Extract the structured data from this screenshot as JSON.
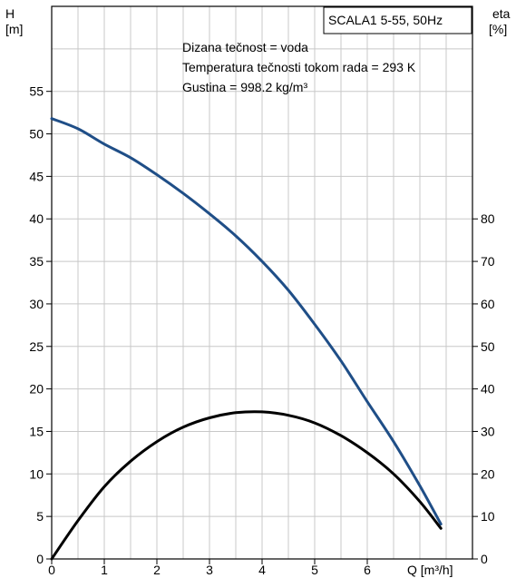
{
  "chart_data": {
    "type": "line",
    "title": "SCALA1 5-55, 50Hz",
    "annotations": [
      "Dizana tečnost = voda",
      "Temperatura tečnosti tokom rada = 293 K",
      "Gustina = 998.2 kg/m³"
    ],
    "xlabel": "Q [m³/h]",
    "ylabel_left": [
      "H",
      "[m]"
    ],
    "ylabel_right": [
      "eta",
      "[%]"
    ],
    "x_ticks": [
      0,
      1,
      2,
      3,
      4,
      5,
      6
    ],
    "y_left_ticks": [
      0,
      5,
      10,
      15,
      20,
      25,
      30,
      35,
      40,
      45,
      50,
      55
    ],
    "y_right_ticks": [
      0,
      10,
      20,
      30,
      40,
      50,
      60,
      70,
      80
    ],
    "xlim": [
      0,
      8
    ],
    "ylim_left": [
      0,
      65
    ],
    "ylim_right": [
      0,
      130
    ],
    "grid": true,
    "series": [
      {
        "axis": "left",
        "color": "#1f4e87",
        "x": [
          0,
          0.5,
          1,
          1.5,
          2,
          2.5,
          3,
          3.5,
          4,
          4.5,
          5,
          5.5,
          6,
          6.5,
          7,
          7.4
        ],
        "values": [
          51.8,
          50.6,
          48.8,
          47.2,
          45.2,
          43.0,
          40.6,
          38.0,
          35.0,
          31.6,
          27.6,
          23.3,
          18.5,
          13.8,
          8.6,
          4.1
        ]
      },
      {
        "axis": "right",
        "color": "#000000",
        "x": [
          0,
          0.5,
          1,
          1.5,
          2,
          2.5,
          3,
          3.5,
          4,
          4.5,
          5,
          5.5,
          6,
          6.5,
          7,
          7.4
        ],
        "values": [
          0,
          9,
          17,
          23,
          27.6,
          31,
          33.2,
          34.4,
          34.6,
          33.8,
          32,
          29,
          25,
          20,
          13.5,
          7.2
        ]
      }
    ]
  }
}
